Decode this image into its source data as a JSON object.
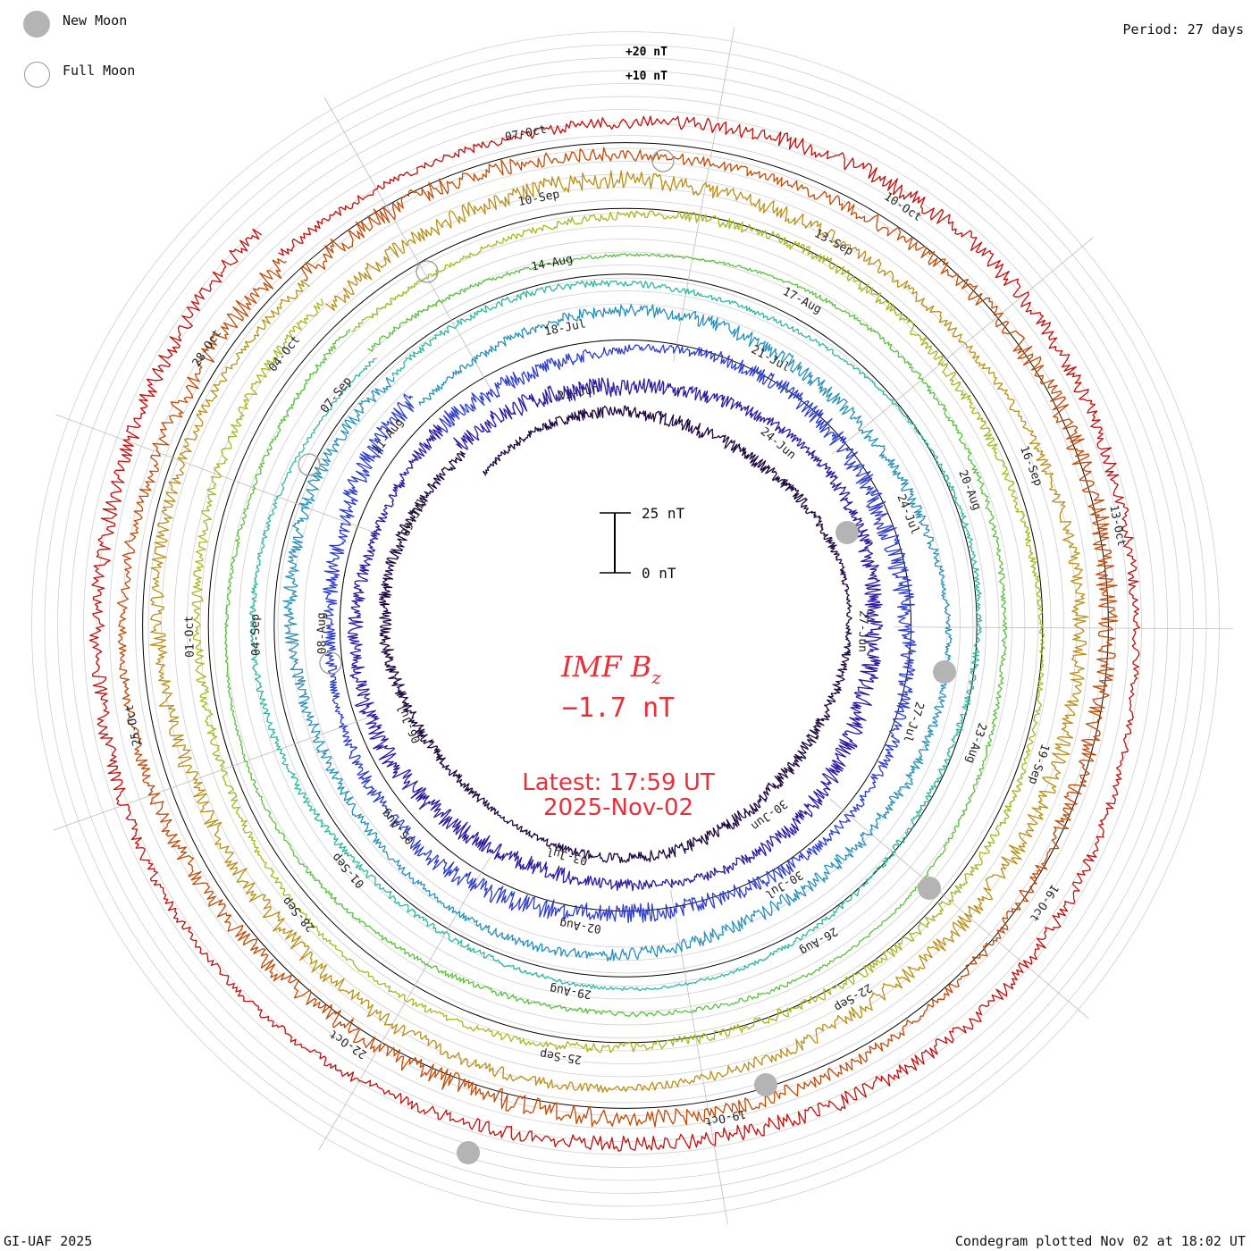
{
  "legend": {
    "new_moon": "New Moon",
    "full_moon": "Full Moon"
  },
  "period_label": "Period: 27 days",
  "ring_scale": {
    "plus20": "+20 nT",
    "plus10": "+10 nT"
  },
  "center": {
    "title": "IMF B",
    "title_sub": "z",
    "value": "−1.7 nT",
    "latest": "Latest: 17:59 UT",
    "date": "2025-Nov-02"
  },
  "scale_bar": {
    "top_label": "25 nT",
    "bottom_label": "0 nT"
  },
  "footer": {
    "left": "GI-UAF 2025",
    "right": "Condegram plotted Nov 02 at 18:02 UT"
  },
  "colors": {
    "accent": "#e8303a",
    "rotations": [
      "#1f0a40",
      "#2b1aa0",
      "#2f3ec8",
      "#2a90b8",
      "#30b8a0",
      "#5cc040",
      "#a8b820",
      "#b89018",
      "#c04a08",
      "#c01010"
    ]
  },
  "chart_data": {
    "type": "condegram",
    "quantity": "IMF Bz",
    "unit": "nT",
    "period_days": 27,
    "latest_value": -1.7,
    "rotations": [
      {
        "labels": [
          "21-Jun",
          "24-Jun",
          "27-Jun",
          "30-Jun",
          "03-Jul",
          "06-Jul",
          "09-Jul"
        ]
      },
      {
        "labels": [
          "18-Jul",
          "21-Jul",
          "24-Jul",
          "27-Jul",
          "30-Jul",
          "02-Aug",
          "05-Aug",
          "08-Aug",
          "11-Aug"
        ]
      },
      {
        "labels": [
          "14-Aug",
          "17-Aug",
          "20-Aug",
          "23-Aug",
          "26-Aug",
          "29-Aug",
          "01-Sep",
          "04-Sep",
          "07-Sep"
        ]
      },
      {
        "labels": [
          "10-Sep",
          "13-Sep",
          "16-Sep",
          "19-Sep",
          "22-Sep",
          "25-Sep",
          "28-Sep",
          "01-Oct",
          "04-Oct"
        ]
      },
      {
        "labels": [
          "07-Oct",
          "10-Oct",
          "13-Oct",
          "16-Oct",
          "19-Oct",
          "22-Oct",
          "25-Oct",
          "28-Oct"
        ]
      }
    ]
  }
}
